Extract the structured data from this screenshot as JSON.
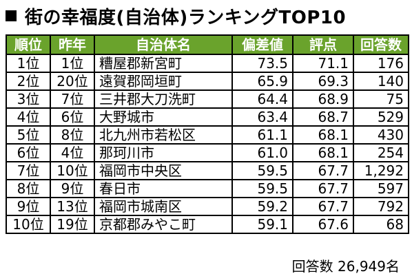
{
  "title": "街の幸福度(自治体)ランキングTOP10",
  "table": {
    "headers": [
      "順位",
      "昨年",
      "自治体名",
      "偏差値",
      "評点",
      "回答数"
    ],
    "rows": [
      {
        "rank": "1位",
        "prev": "1位",
        "name": "糟屋郡新宮町",
        "dev": "73.5",
        "score": "71.1",
        "resp": "176"
      },
      {
        "rank": "2位",
        "prev": "20位",
        "name": "遠賀郡岡垣町",
        "dev": "65.9",
        "score": "69.3",
        "resp": "140"
      },
      {
        "rank": "3位",
        "prev": "7位",
        "name": "三井郡大刀洗町",
        "dev": "64.4",
        "score": "68.9",
        "resp": "75"
      },
      {
        "rank": "4位",
        "prev": "6位",
        "name": "大野城市",
        "dev": "63.4",
        "score": "68.7",
        "resp": "529"
      },
      {
        "rank": "5位",
        "prev": "8位",
        "name": "北九州市若松区",
        "dev": "61.1",
        "score": "68.1",
        "resp": "430"
      },
      {
        "rank": "6位",
        "prev": "4位",
        "name": "那珂川市",
        "dev": "61.0",
        "score": "68.1",
        "resp": "254"
      },
      {
        "rank": "7位",
        "prev": "10位",
        "name": "福岡市中央区",
        "dev": "59.5",
        "score": "67.7",
        "resp": "1,292"
      },
      {
        "rank": "8位",
        "prev": "9位",
        "name": "春日市",
        "dev": "59.5",
        "score": "67.7",
        "resp": "597"
      },
      {
        "rank": "9位",
        "prev": "13位",
        "name": "福岡市城南区",
        "dev": "59.2",
        "score": "67.7",
        "resp": "792"
      },
      {
        "rank": "10位",
        "prev": "19位",
        "name": "京都郡みやこ町",
        "dev": "59.1",
        "score": "67.6",
        "resp": "68"
      }
    ]
  },
  "footer": "回答数 26,949名",
  "colors": {
    "header_bg": "#6aa32c",
    "header_text": "#ffffff"
  }
}
